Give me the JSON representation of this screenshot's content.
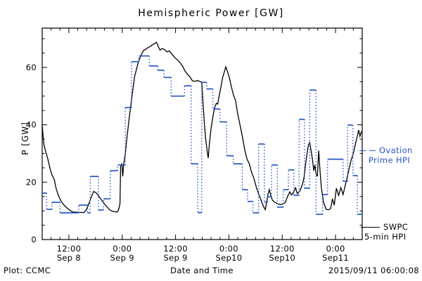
{
  "title": "Hemispheric Power [GW]",
  "footer": {
    "plot_credit": "Plot: CCMC",
    "xlabel": "Date and Time",
    "timestamp": "2015/09/11 06:00:08"
  },
  "axes": {
    "ylabel": "P [GW]",
    "ylim": [
      0,
      73.7
    ],
    "y_ticks": [
      0,
      20,
      40,
      60
    ],
    "y_minor_step": 5,
    "x_hours": 72,
    "x_minor_step_h": 2,
    "x_major": [
      {
        "h": 6,
        "time": "12:00",
        "date": "Sep 8"
      },
      {
        "h": 18,
        "time": "0:00",
        "date": "Sep 9"
      },
      {
        "h": 30,
        "time": "12:00",
        "date": "Sep 9"
      },
      {
        "h": 42,
        "time": "0:00",
        "date": "Sep10"
      },
      {
        "h": 54,
        "time": "12:00",
        "date": "Sep10"
      },
      {
        "h": 66,
        "time": "0:00",
        "date": "Sep11"
      }
    ]
  },
  "legend": {
    "ovation": {
      "line1": "Ovation",
      "line2": "Prime HPI",
      "color": "#2a56c6"
    },
    "swpc": {
      "line1": "SWPC",
      "line2": "5-min HPI",
      "color": "#000000"
    }
  },
  "chart_data": {
    "type": "line",
    "title": "Hemispheric Power [GW]",
    "xlabel": "Date and Time",
    "ylabel": "P [GW]",
    "x_axis_note": "hours since 2015-09-08 06:00 UT, span 72 h ending 2015-09-11 06:00",
    "ylim": [
      0,
      73.7
    ],
    "grid": false,
    "legend_position": "right-outside",
    "series": [
      {
        "name": "SWPC 5-min HPI",
        "style": "solid",
        "color": "#000000",
        "points": [
          [
            0,
            40
          ],
          [
            0.2,
            36
          ],
          [
            0.4,
            33
          ],
          [
            0.8,
            30.5
          ],
          [
            1.2,
            28.5
          ],
          [
            1.8,
            24.5
          ],
          [
            2.2,
            22.5
          ],
          [
            2.7,
            21
          ],
          [
            3.1,
            18
          ],
          [
            3.6,
            15.5
          ],
          [
            4.2,
            13.5
          ],
          [
            4.9,
            12
          ],
          [
            5.6,
            11
          ],
          [
            6.2,
            10.2
          ],
          [
            6.9,
            9.6
          ],
          [
            8,
            9.5
          ],
          [
            9.4,
            9.4
          ],
          [
            9.9,
            10.3
          ],
          [
            10.5,
            12.5
          ],
          [
            11.1,
            15
          ],
          [
            11.6,
            16.8
          ],
          [
            12.2,
            16.2
          ],
          [
            12.9,
            14.8
          ],
          [
            13.7,
            13
          ],
          [
            14.5,
            11.5
          ],
          [
            15.2,
            10.3
          ],
          [
            15.9,
            9.8
          ],
          [
            16.9,
            9.6
          ],
          [
            17.2,
            10.5
          ],
          [
            17.5,
            12.5
          ],
          [
            17.65,
            25.5
          ],
          [
            17.95,
            26.5
          ],
          [
            18.1,
            22
          ],
          [
            18.35,
            26.5
          ],
          [
            18.7,
            30
          ],
          [
            19,
            34.6
          ],
          [
            19.6,
            42.8
          ],
          [
            20.2,
            50
          ],
          [
            20.8,
            56.8
          ],
          [
            21.6,
            61.7
          ],
          [
            22.3,
            64.5
          ],
          [
            22.8,
            65.9
          ],
          [
            23.3,
            66.3
          ],
          [
            23.9,
            67
          ],
          [
            24.4,
            67.4
          ],
          [
            24.9,
            68
          ],
          [
            25.4,
            68.4
          ],
          [
            25.7,
            68.8
          ],
          [
            26.1,
            67.4
          ],
          [
            26.5,
            66
          ],
          [
            27,
            66.6
          ],
          [
            27.5,
            66.2
          ],
          [
            28.1,
            65.4
          ],
          [
            28.6,
            65.8
          ],
          [
            29.2,
            64.6
          ],
          [
            29.8,
            63.5
          ],
          [
            30.5,
            62.5
          ],
          [
            31.2,
            61.3
          ],
          [
            31.7,
            60.1
          ],
          [
            32.1,
            58.8
          ],
          [
            32.7,
            57.6
          ],
          [
            33.2,
            56.8
          ],
          [
            33.8,
            55.3
          ],
          [
            34.4,
            55.2
          ],
          [
            35,
            55.4
          ],
          [
            35.5,
            55.1
          ],
          [
            35.9,
            54.8
          ],
          [
            36.2,
            47
          ],
          [
            36.5,
            40
          ],
          [
            36.8,
            34.6
          ],
          [
            37.1,
            31
          ],
          [
            37.35,
            28.4
          ],
          [
            37.6,
            33
          ],
          [
            38,
            38.8
          ],
          [
            38.5,
            43.7
          ],
          [
            38.9,
            46.5
          ],
          [
            39.2,
            47.5
          ],
          [
            39.5,
            47.2
          ],
          [
            39.8,
            50
          ],
          [
            40.2,
            53
          ],
          [
            40.6,
            56.5
          ],
          [
            41,
            58.6
          ],
          [
            41.3,
            60.2
          ],
          [
            41.7,
            58.5
          ],
          [
            42.1,
            56.5
          ],
          [
            42.6,
            53
          ],
          [
            43.1,
            50
          ],
          [
            43.5,
            48.5
          ],
          [
            44,
            43.6
          ],
          [
            44.5,
            40
          ],
          [
            45,
            36.2
          ],
          [
            45.6,
            31
          ],
          [
            46.1,
            28
          ],
          [
            46.6,
            26.4
          ],
          [
            47.1,
            23.5
          ],
          [
            47.6,
            21.5
          ],
          [
            48.2,
            18.1
          ],
          [
            48.8,
            15.5
          ],
          [
            49.3,
            13.5
          ],
          [
            49.8,
            11.5
          ],
          [
            50.2,
            10.4
          ],
          [
            50.5,
            13
          ],
          [
            50.8,
            15.7
          ],
          [
            51.1,
            17.4
          ],
          [
            51.5,
            15
          ],
          [
            51.8,
            13.7
          ],
          [
            52.3,
            13
          ],
          [
            52.9,
            12.5
          ],
          [
            53.5,
            12.2
          ],
          [
            54.1,
            12.4
          ],
          [
            54.7,
            13
          ],
          [
            55.2,
            15
          ],
          [
            55.7,
            16.6
          ],
          [
            56.1,
            15.5
          ],
          [
            56.6,
            16.6
          ],
          [
            57,
            18.1
          ],
          [
            57.4,
            16
          ],
          [
            58,
            17
          ],
          [
            58.5,
            19
          ],
          [
            58.9,
            21.5
          ],
          [
            59.4,
            28
          ],
          [
            59.9,
            33
          ],
          [
            60.2,
            33.8
          ],
          [
            60.5,
            31
          ],
          [
            60.8,
            28
          ],
          [
            61.1,
            24
          ],
          [
            61.35,
            26
          ],
          [
            61.6,
            23
          ],
          [
            61.9,
            22
          ],
          [
            62.2,
            31
          ],
          [
            62.5,
            24
          ],
          [
            62.8,
            18.1
          ],
          [
            63.3,
            13
          ],
          [
            63.9,
            10.5
          ],
          [
            64.5,
            10.4
          ],
          [
            64.9,
            10.8
          ],
          [
            65.3,
            14.2
          ],
          [
            65.7,
            12
          ],
          [
            66.2,
            17.9
          ],
          [
            66.7,
            15.4
          ],
          [
            67.2,
            18.1
          ],
          [
            67.7,
            15.7
          ],
          [
            68.2,
            19
          ],
          [
            68.6,
            21.5
          ],
          [
            69.1,
            25
          ],
          [
            69.5,
            27.7
          ],
          [
            70,
            30
          ],
          [
            70.5,
            33.5
          ],
          [
            70.9,
            36
          ],
          [
            71.2,
            38.2
          ],
          [
            71.5,
            36
          ],
          [
            71.8,
            37.5
          ],
          [
            72,
            37.5
          ]
        ]
      },
      {
        "name": "Ovation Prime HPI",
        "style": "step-dotted",
        "color": "#2a56c6",
        "steps": [
          [
            0,
            1,
            16.2
          ],
          [
            1,
            2.2,
            10.5
          ],
          [
            2.2,
            4,
            13
          ],
          [
            4,
            8.2,
            9.3
          ],
          [
            8.2,
            10.2,
            12
          ],
          [
            10.2,
            10.8,
            9.3
          ],
          [
            10.8,
            12.65,
            22
          ],
          [
            12.65,
            13.8,
            10.3
          ],
          [
            13.8,
            15.3,
            14.2
          ],
          [
            15.3,
            17,
            24
          ],
          [
            17,
            18.7,
            26
          ],
          [
            18.7,
            20.1,
            46
          ],
          [
            20.1,
            21.8,
            62
          ],
          [
            21.8,
            24.1,
            64
          ],
          [
            24.1,
            26,
            60.5
          ],
          [
            26,
            27.4,
            59
          ],
          [
            27.4,
            29,
            56.5
          ],
          [
            29,
            32,
            50
          ],
          [
            32,
            33.5,
            53.6
          ],
          [
            33.5,
            35,
            26.4
          ],
          [
            35,
            35.9,
            9.4
          ],
          [
            35.9,
            37,
            54.8
          ],
          [
            37,
            38.4,
            52.5
          ],
          [
            38.4,
            40,
            45.5
          ],
          [
            40,
            41.5,
            41
          ],
          [
            41.5,
            43,
            29.2
          ],
          [
            43,
            45,
            26.4
          ],
          [
            45,
            46.2,
            17.4
          ],
          [
            46.2,
            47.4,
            13.3
          ],
          [
            47.4,
            48.7,
            9.3
          ],
          [
            48.7,
            50,
            33.3
          ],
          [
            50,
            50.7,
            13
          ],
          [
            50.7,
            51.6,
            14.9
          ],
          [
            51.6,
            52.9,
            26
          ],
          [
            52.9,
            54.2,
            11.3
          ],
          [
            54.2,
            55.4,
            17.4
          ],
          [
            55.4,
            56.6,
            24.3
          ],
          [
            56.6,
            57.8,
            15.4
          ],
          [
            57.8,
            59,
            41.9
          ],
          [
            59,
            60.2,
            17.9
          ],
          [
            60.2,
            61.6,
            52.1
          ],
          [
            61.6,
            63.1,
            8.8
          ],
          [
            63.1,
            64.2,
            15.7
          ],
          [
            64.2,
            67.7,
            28
          ],
          [
            67.7,
            68.7,
            20.3
          ],
          [
            68.7,
            69.9,
            39.9
          ],
          [
            69.9,
            70.9,
            22.3
          ],
          [
            70.9,
            72,
            8.8
          ]
        ]
      }
    ]
  }
}
